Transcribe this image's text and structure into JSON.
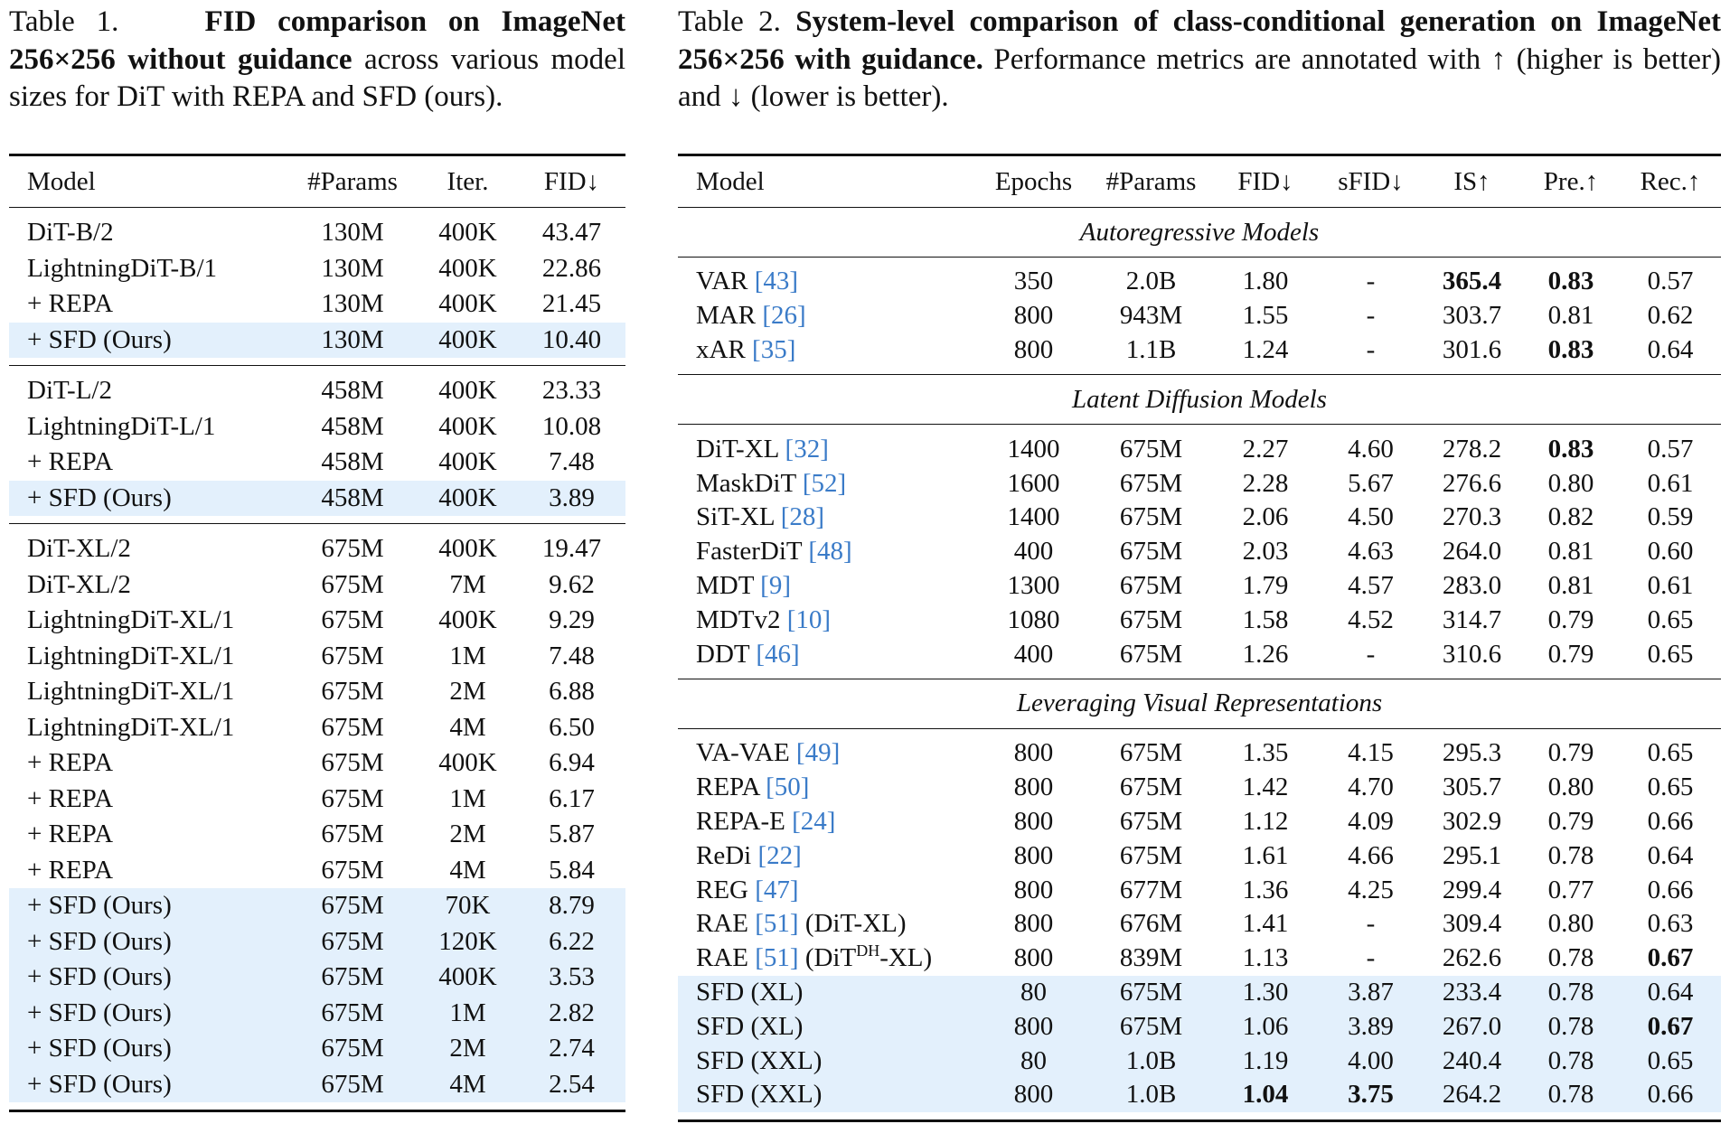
{
  "table1": {
    "caption": {
      "label": "Table 1.",
      "bold": "FID comparison on ImageNet 256×256 without guidance",
      "rest": " across various model sizes for DiT with REPA and SFD (ours)."
    },
    "headers": [
      "Model",
      "#Params",
      "Iter.",
      "FID↓"
    ],
    "groups": [
      {
        "rows": [
          {
            "cells": [
              "DiT-B/2",
              "130M",
              "400K",
              "43.47"
            ]
          },
          {
            "cells": [
              "LightningDiT-B/1",
              "130M",
              "400K",
              "22.86"
            ]
          },
          {
            "cells": [
              "+ REPA",
              "130M",
              "400K",
              "21.45"
            ]
          },
          {
            "cells": [
              "+ SFD (Ours)",
              "130M",
              "400K",
              "10.40"
            ],
            "highlight": true
          }
        ]
      },
      {
        "rows": [
          {
            "cells": [
              "DiT-L/2",
              "458M",
              "400K",
              "23.33"
            ]
          },
          {
            "cells": [
              "LightningDiT-L/1",
              "458M",
              "400K",
              "10.08"
            ]
          },
          {
            "cells": [
              "+ REPA",
              "458M",
              "400K",
              "7.48"
            ]
          },
          {
            "cells": [
              "+ SFD (Ours)",
              "458M",
              "400K",
              "3.89"
            ],
            "highlight": true
          }
        ]
      },
      {
        "rows": [
          {
            "cells": [
              "DiT-XL/2",
              "675M",
              "400K",
              "19.47"
            ]
          },
          {
            "cells": [
              "DiT-XL/2",
              "675M",
              "7M",
              "9.62"
            ]
          },
          {
            "cells": [
              "LightningDiT-XL/1",
              "675M",
              "400K",
              "9.29"
            ]
          },
          {
            "cells": [
              "LightningDiT-XL/1",
              "675M",
              "1M",
              "7.48"
            ]
          },
          {
            "cells": [
              "LightningDiT-XL/1",
              "675M",
              "2M",
              "6.88"
            ]
          },
          {
            "cells": [
              "LightningDiT-XL/1",
              "675M",
              "4M",
              "6.50"
            ]
          },
          {
            "cells": [
              "+ REPA",
              "675M",
              "400K",
              "6.94"
            ]
          },
          {
            "cells": [
              "+ REPA",
              "675M",
              "1M",
              "6.17"
            ]
          },
          {
            "cells": [
              "+ REPA",
              "675M",
              "2M",
              "5.87"
            ]
          },
          {
            "cells": [
              "+ REPA",
              "675M",
              "4M",
              "5.84"
            ]
          },
          {
            "cells": [
              "+ SFD (Ours)",
              "675M",
              "70K",
              "8.79"
            ],
            "highlight": true
          },
          {
            "cells": [
              "+ SFD (Ours)",
              "675M",
              "120K",
              "6.22"
            ],
            "highlight": true
          },
          {
            "cells": [
              "+ SFD (Ours)",
              "675M",
              "400K",
              "3.53"
            ],
            "highlight": true
          },
          {
            "cells": [
              "+ SFD (Ours)",
              "675M",
              "1M",
              "2.82"
            ],
            "highlight": true
          },
          {
            "cells": [
              "+ SFD (Ours)",
              "675M",
              "2M",
              "2.74"
            ],
            "highlight": true
          },
          {
            "cells": [
              "+ SFD (Ours)",
              "675M",
              "4M",
              "2.54"
            ],
            "highlight": true
          }
        ]
      }
    ]
  },
  "table2": {
    "caption": {
      "label": "Table 2.",
      "bold": "System-level comparison of class-conditional generation on ImageNet 256×256 with guidance.",
      "rest": " Performance metrics are annotated with ↑ (higher is better) and ↓ (lower is better)."
    },
    "headers": [
      "Model",
      "Epochs",
      "#Params",
      "FID↓",
      "sFID↓",
      "IS↑",
      "Pre.↑",
      "Rec.↑"
    ],
    "groups": [
      {
        "title": "Autoregressive Models",
        "rows": [
          {
            "model": [
              {
                "t": "VAR "
              },
              {
                "cite": "[43]"
              }
            ],
            "cells": [
              "350",
              "2.0B",
              "1.80",
              "-",
              "365.4",
              "0.83",
              "0.57"
            ],
            "bold": [
              4,
              5
            ]
          },
          {
            "model": [
              {
                "t": "MAR "
              },
              {
                "cite": "[26]"
              }
            ],
            "cells": [
              "800",
              "943M",
              "1.55",
              "-",
              "303.7",
              "0.81",
              "0.62"
            ]
          },
          {
            "model": [
              {
                "t": "xAR "
              },
              {
                "cite": "[35]"
              }
            ],
            "cells": [
              "800",
              "1.1B",
              "1.24",
              "-",
              "301.6",
              "0.83",
              "0.64"
            ],
            "bold": [
              5
            ]
          }
        ]
      },
      {
        "title": "Latent Diffusion Models",
        "rows": [
          {
            "model": [
              {
                "t": "DiT-XL "
              },
              {
                "cite": "[32]"
              }
            ],
            "cells": [
              "1400",
              "675M",
              "2.27",
              "4.60",
              "278.2",
              "0.83",
              "0.57"
            ],
            "bold": [
              5
            ]
          },
          {
            "model": [
              {
                "t": "MaskDiT "
              },
              {
                "cite": "[52]"
              }
            ],
            "cells": [
              "1600",
              "675M",
              "2.28",
              "5.67",
              "276.6",
              "0.80",
              "0.61"
            ]
          },
          {
            "model": [
              {
                "t": "SiT-XL "
              },
              {
                "cite": "[28]"
              }
            ],
            "cells": [
              "1400",
              "675M",
              "2.06",
              "4.50",
              "270.3",
              "0.82",
              "0.59"
            ]
          },
          {
            "model": [
              {
                "t": "FasterDiT "
              },
              {
                "cite": "[48]"
              }
            ],
            "cells": [
              "400",
              "675M",
              "2.03",
              "4.63",
              "264.0",
              "0.81",
              "0.60"
            ]
          },
          {
            "model": [
              {
                "t": "MDT "
              },
              {
                "cite": "[9]"
              }
            ],
            "cells": [
              "1300",
              "675M",
              "1.79",
              "4.57",
              "283.0",
              "0.81",
              "0.61"
            ]
          },
          {
            "model": [
              {
                "t": "MDTv2 "
              },
              {
                "cite": "[10]"
              }
            ],
            "cells": [
              "1080",
              "675M",
              "1.58",
              "4.52",
              "314.7",
              "0.79",
              "0.65"
            ]
          },
          {
            "model": [
              {
                "t": "DDT "
              },
              {
                "cite": "[46]"
              }
            ],
            "cells": [
              "400",
              "675M",
              "1.26",
              "-",
              "310.6",
              "0.79",
              "0.65"
            ]
          }
        ]
      },
      {
        "title": "Leveraging Visual Representations",
        "rows": [
          {
            "model": [
              {
                "t": "VA-VAE "
              },
              {
                "cite": "[49]"
              }
            ],
            "cells": [
              "800",
              "675M",
              "1.35",
              "4.15",
              "295.3",
              "0.79",
              "0.65"
            ]
          },
          {
            "model": [
              {
                "t": "REPA "
              },
              {
                "cite": "[50]"
              }
            ],
            "cells": [
              "800",
              "675M",
              "1.42",
              "4.70",
              "305.7",
              "0.80",
              "0.65"
            ]
          },
          {
            "model": [
              {
                "t": "REPA-E "
              },
              {
                "cite": "[24]"
              }
            ],
            "cells": [
              "800",
              "675M",
              "1.12",
              "4.09",
              "302.9",
              "0.79",
              "0.66"
            ]
          },
          {
            "model": [
              {
                "t": "ReDi "
              },
              {
                "cite": "[22]"
              }
            ],
            "cells": [
              "800",
              "675M",
              "1.61",
              "4.66",
              "295.1",
              "0.78",
              "0.64"
            ]
          },
          {
            "model": [
              {
                "t": "REG "
              },
              {
                "cite": "[47]"
              }
            ],
            "cells": [
              "800",
              "677M",
              "1.36",
              "4.25",
              "299.4",
              "0.77",
              "0.66"
            ]
          },
          {
            "model": [
              {
                "t": "RAE "
              },
              {
                "cite": "[51]"
              },
              {
                "t": " (DiT-XL)"
              }
            ],
            "cells": [
              "800",
              "676M",
              "1.41",
              "-",
              "309.4",
              "0.80",
              "0.63"
            ]
          },
          {
            "model": [
              {
                "t": "RAE "
              },
              {
                "cite": "[51]"
              },
              {
                "t": " (DiT"
              },
              {
                "sup": "DH"
              },
              {
                "t": "-XL)"
              }
            ],
            "cells": [
              "800",
              "839M",
              "1.13",
              "-",
              "262.6",
              "0.78",
              "0.67"
            ],
            "bold": [
              6
            ]
          },
          {
            "model": [
              {
                "t": "SFD (XL)"
              }
            ],
            "cells": [
              "80",
              "675M",
              "1.30",
              "3.87",
              "233.4",
              "0.78",
              "0.64"
            ],
            "highlight": true
          },
          {
            "model": [
              {
                "t": "SFD (XL)"
              }
            ],
            "cells": [
              "800",
              "675M",
              "1.06",
              "3.89",
              "267.0",
              "0.78",
              "0.67"
            ],
            "highlight": true,
            "bold": [
              6
            ]
          },
          {
            "model": [
              {
                "t": "SFD (XXL)"
              }
            ],
            "cells": [
              "80",
              "1.0B",
              "1.19",
              "4.00",
              "240.4",
              "0.78",
              "0.65"
            ],
            "highlight": true
          },
          {
            "model": [
              {
                "t": "SFD (XXL)"
              }
            ],
            "cells": [
              "800",
              "1.0B",
              "1.04",
              "3.75",
              "264.2",
              "0.78",
              "0.66"
            ],
            "highlight": true,
            "bold": [
              2,
              3
            ]
          }
        ]
      }
    ]
  }
}
